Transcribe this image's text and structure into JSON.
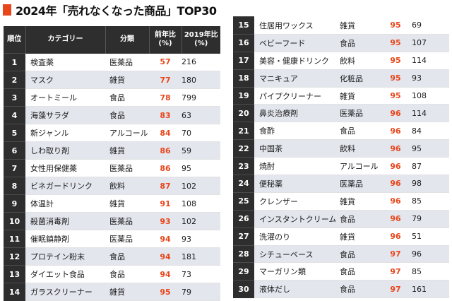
{
  "title": "2024年「売れなくなった商品」TOP30",
  "headers": {
    "rank": "順位",
    "category": "カテゴリー",
    "class": "分類",
    "prev": "前年比\n(%)",
    "v2019": "2019年比\n(%)"
  },
  "left_rows": [
    {
      "rank": "1",
      "name": "検査薬",
      "cat": "医薬品",
      "prev": "57",
      "v2019": "216"
    },
    {
      "rank": "2",
      "name": "マスク",
      "cat": "雑貨",
      "prev": "77",
      "v2019": "180"
    },
    {
      "rank": "3",
      "name": "オートミール",
      "cat": "食品",
      "prev": "78",
      "v2019": "799"
    },
    {
      "rank": "4",
      "name": "海藻サラダ",
      "cat": "食品",
      "prev": "83",
      "v2019": "63"
    },
    {
      "rank": "5",
      "name": "新ジャンル",
      "cat": "アルコール",
      "prev": "84",
      "v2019": "70"
    },
    {
      "rank": "6",
      "name": "しわ取り剤",
      "cat": "雑貨",
      "prev": "86",
      "v2019": "59"
    },
    {
      "rank": "7",
      "name": "女性用保健薬",
      "cat": "医薬品",
      "prev": "86",
      "v2019": "95"
    },
    {
      "rank": "8",
      "name": "ビネガードリンク",
      "cat": "飲料",
      "prev": "87",
      "v2019": "102"
    },
    {
      "rank": "9",
      "name": "体温計",
      "cat": "雑貨",
      "prev": "91",
      "v2019": "108"
    },
    {
      "rank": "10",
      "name": "殺菌消毒剤",
      "cat": "医薬品",
      "prev": "93",
      "v2019": "102"
    },
    {
      "rank": "11",
      "name": "催眠鎮静剤",
      "cat": "医薬品",
      "prev": "94",
      "v2019": "93"
    },
    {
      "rank": "12",
      "name": "プロテイン粉末",
      "cat": "食品",
      "prev": "94",
      "v2019": "181"
    },
    {
      "rank": "13",
      "name": "ダイエット食品",
      "cat": "食品",
      "prev": "94",
      "v2019": "73"
    },
    {
      "rank": "14",
      "name": "ガラスクリーナー",
      "cat": "雑貨",
      "prev": "95",
      "v2019": "79"
    }
  ],
  "right_rows": [
    {
      "rank": "15",
      "name": "住居用ワックス",
      "cat": "雑貨",
      "prev": "95",
      "v2019": "69"
    },
    {
      "rank": "16",
      "name": "ベビーフード",
      "cat": "食品",
      "prev": "95",
      "v2019": "107"
    },
    {
      "rank": "17",
      "name": "美容・健康ドリンク",
      "cat": "飲料",
      "prev": "95",
      "v2019": "114"
    },
    {
      "rank": "18",
      "name": "マニキュア",
      "cat": "化粧品",
      "prev": "95",
      "v2019": "93"
    },
    {
      "rank": "19",
      "name": "パイプクリーナー",
      "cat": "雑貨",
      "prev": "95",
      "v2019": "108"
    },
    {
      "rank": "20",
      "name": "鼻炎治療剤",
      "cat": "医薬品",
      "prev": "96",
      "v2019": "114"
    },
    {
      "rank": "21",
      "name": "食酢",
      "cat": "食品",
      "prev": "96",
      "v2019": "84"
    },
    {
      "rank": "22",
      "name": "中国茶",
      "cat": "飲料",
      "prev": "96",
      "v2019": "95"
    },
    {
      "rank": "23",
      "name": "焼酎",
      "cat": "アルコール",
      "prev": "96",
      "v2019": "87"
    },
    {
      "rank": "24",
      "name": "便秘薬",
      "cat": "医薬品",
      "prev": "96",
      "v2019": "98"
    },
    {
      "rank": "25",
      "name": "クレンザー",
      "cat": "雑貨",
      "prev": "96",
      "v2019": "85"
    },
    {
      "rank": "26",
      "name": "インスタントクリーム",
      "cat": "食品",
      "prev": "96",
      "v2019": "79"
    },
    {
      "rank": "27",
      "name": "洗濯のり",
      "cat": "雑貨",
      "prev": "96",
      "v2019": "51"
    },
    {
      "rank": "28",
      "name": "シチューベース",
      "cat": "食品",
      "prev": "97",
      "v2019": "96"
    },
    {
      "rank": "29",
      "name": "マーガリン類",
      "cat": "食品",
      "prev": "97",
      "v2019": "85"
    },
    {
      "rank": "30",
      "name": "液体だし",
      "cat": "食品",
      "prev": "97",
      "v2019": "161"
    }
  ],
  "colors": {
    "accent": "#e8471c",
    "header_bg": "#2e2e2e",
    "stripe": "#e4e6ee"
  }
}
